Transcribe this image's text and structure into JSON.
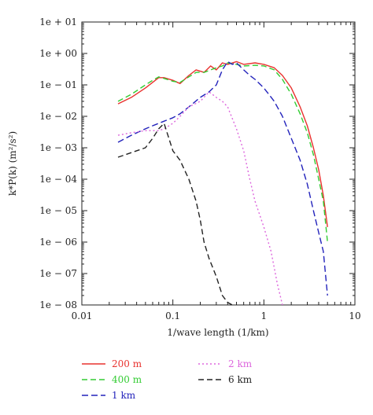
{
  "chart_data": {
    "type": "line",
    "xlabel": "1/wave length (1/km)",
    "ylabel": "k*P(k) (m²/s²)",
    "xscale": "log",
    "yscale": "log",
    "xlim": [
      0.01,
      10
    ],
    "ylim": [
      1e-08,
      10
    ],
    "x_ticks": [
      {
        "value": 0.01,
        "label": "0.01"
      },
      {
        "value": 0.1,
        "label": "0.1"
      },
      {
        "value": 1,
        "label": "1"
      },
      {
        "value": 10,
        "label": "10"
      }
    ],
    "y_ticks": [
      {
        "value": 10,
        "label": "1e + 01"
      },
      {
        "value": 1,
        "label": "1e + 00"
      },
      {
        "value": 0.1,
        "label": "1e − 01"
      },
      {
        "value": 0.01,
        "label": "1e − 02"
      },
      {
        "value": 0.001,
        "label": "1e − 03"
      },
      {
        "value": 0.0001,
        "label": "1e − 04"
      },
      {
        "value": 1e-05,
        "label": "1e − 05"
      },
      {
        "value": 1e-06,
        "label": "1e − 06"
      },
      {
        "value": 1e-07,
        "label": "1e − 07"
      },
      {
        "value": 1e-08,
        "label": "1e − 08"
      }
    ],
    "legend_position": "bottom",
    "series": [
      {
        "name": "200 m",
        "color": "#e8322e",
        "dash": "solid",
        "x": [
          0.025,
          0.035,
          0.05,
          0.06,
          0.07,
          0.08,
          0.1,
          0.12,
          0.15,
          0.18,
          0.22,
          0.26,
          0.3,
          0.35,
          0.4,
          0.5,
          0.6,
          0.8,
          1.0,
          1.3,
          1.6,
          2.0,
          2.5,
          3.0,
          3.5,
          4.0,
          4.5,
          5.0
        ],
        "y": [
          0.025,
          0.04,
          0.08,
          0.12,
          0.17,
          0.17,
          0.14,
          0.11,
          0.2,
          0.3,
          0.25,
          0.4,
          0.3,
          0.5,
          0.45,
          0.55,
          0.45,
          0.5,
          0.45,
          0.35,
          0.2,
          0.08,
          0.02,
          0.005,
          0.001,
          0.0002,
          3e-05,
          3e-06
        ]
      },
      {
        "name": "400 m",
        "color": "#33cc33",
        "dash": "7,4",
        "x": [
          0.025,
          0.035,
          0.05,
          0.06,
          0.07,
          0.08,
          0.1,
          0.12,
          0.15,
          0.18,
          0.22,
          0.26,
          0.3,
          0.35,
          0.4,
          0.5,
          0.6,
          0.8,
          1.0,
          1.3,
          1.6,
          2.0,
          2.5,
          3.0,
          3.5,
          4.0,
          4.5,
          5.0
        ],
        "y": [
          0.03,
          0.05,
          0.1,
          0.14,
          0.18,
          0.16,
          0.13,
          0.12,
          0.18,
          0.25,
          0.25,
          0.3,
          0.35,
          0.4,
          0.5,
          0.45,
          0.4,
          0.42,
          0.4,
          0.3,
          0.15,
          0.05,
          0.012,
          0.003,
          0.0006,
          0.0001,
          2e-05,
          1e-06
        ]
      },
      {
        "name": "1 km",
        "color": "#2222bb",
        "dash": "8,4",
        "x": [
          0.025,
          0.035,
          0.05,
          0.06,
          0.07,
          0.08,
          0.1,
          0.12,
          0.15,
          0.2,
          0.25,
          0.3,
          0.35,
          0.4,
          0.45,
          0.5,
          0.6,
          0.7,
          0.8,
          1.0,
          1.3,
          1.6,
          2.0,
          2.5,
          3.0,
          3.5,
          4.0,
          4.5,
          5.0
        ],
        "y": [
          0.0015,
          0.0025,
          0.004,
          0.005,
          0.006,
          0.007,
          0.009,
          0.012,
          0.02,
          0.04,
          0.06,
          0.1,
          0.3,
          0.55,
          0.45,
          0.5,
          0.3,
          0.2,
          0.15,
          0.08,
          0.03,
          0.01,
          0.002,
          0.0004,
          7e-05,
          1e-05,
          2e-06,
          5e-07,
          2e-08
        ]
      },
      {
        "name": "2 km",
        "color": "#dd66dd",
        "dash": "2,3",
        "x": [
          0.025,
          0.035,
          0.05,
          0.07,
          0.08,
          0.1,
          0.12,
          0.15,
          0.2,
          0.25,
          0.3,
          0.35,
          0.4,
          0.5,
          0.6,
          0.7,
          0.8,
          1.0,
          1.2,
          1.4,
          1.6
        ],
        "y": [
          0.0025,
          0.003,
          0.0035,
          0.0035,
          0.004,
          0.006,
          0.01,
          0.02,
          0.03,
          0.06,
          0.04,
          0.03,
          0.02,
          0.004,
          0.0008,
          0.0001,
          2e-05,
          3e-06,
          5e-07,
          5e-08,
          1e-08
        ]
      },
      {
        "name": "6 km",
        "color": "#222222",
        "dash": "7,4",
        "x": [
          0.025,
          0.035,
          0.05,
          0.06,
          0.07,
          0.08,
          0.1,
          0.12,
          0.15,
          0.18,
          0.2,
          0.22,
          0.25,
          0.3,
          0.35,
          0.4,
          0.45
        ],
        "y": [
          0.0005,
          0.0007,
          0.001,
          0.002,
          0.004,
          0.006,
          0.0008,
          0.0004,
          0.0001,
          2e-05,
          5e-06,
          1e-06,
          3e-07,
          8e-08,
          2e-08,
          1.2e-08,
          1e-08
        ]
      }
    ]
  }
}
